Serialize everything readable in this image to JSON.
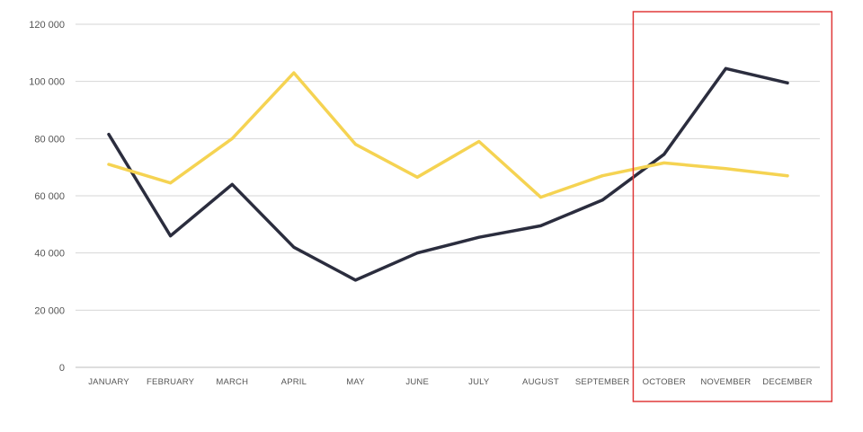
{
  "chart_data": {
    "type": "line",
    "title": "",
    "xlabel": "",
    "ylabel": "",
    "categories": [
      "JANUARY",
      "FEBRUARY",
      "MARCH",
      "APRIL",
      "MAY",
      "JUNE",
      "JULY",
      "AUGUST",
      "SEPTEMBER",
      "OCTOBER",
      "NOVEMBER",
      "DECEMBER"
    ],
    "ylim": [
      0,
      120000
    ],
    "yticks": [
      0,
      20000,
      40000,
      60000,
      80000,
      100000,
      120000
    ],
    "ytick_labels": [
      "0",
      "20 000",
      "40 000",
      "60 000",
      "80 000",
      "100 000",
      "120 000"
    ],
    "grid": true,
    "legend": "none",
    "series": [
      {
        "color": "#2b2d3e",
        "values": [
          81500,
          46000,
          64000,
          42000,
          30500,
          40000,
          45500,
          49500,
          58500,
          74500,
          104500,
          99500
        ]
      },
      {
        "color": "#f5d352",
        "values": [
          71000,
          64500,
          80000,
          103000,
          78000,
          66500,
          79000,
          59500,
          67000,
          71500,
          69500,
          67000
        ]
      }
    ],
    "highlight": {
      "from_category": "OCTOBER",
      "to_category": "DECEMBER",
      "color": "#e03a3a"
    }
  }
}
